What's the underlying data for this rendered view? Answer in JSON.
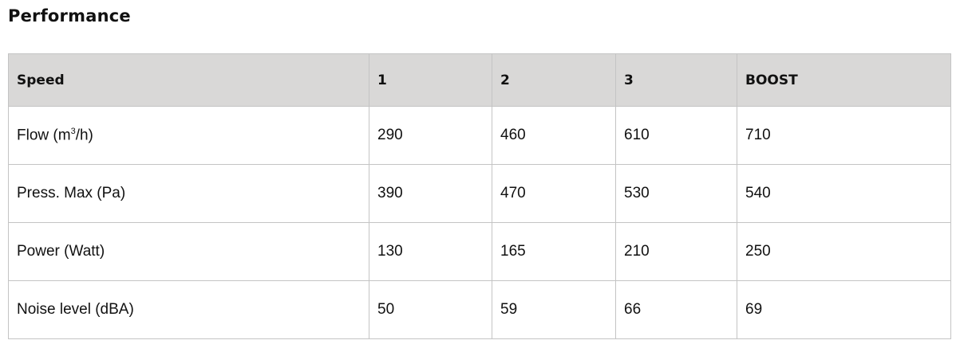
{
  "title": "Performance",
  "table": {
    "headers": [
      "Speed",
      "1",
      "2",
      "3",
      "BOOST"
    ],
    "rows": [
      {
        "label_main": "Flow (m",
        "label_sup": "3",
        "label_tail": "/h)",
        "values": [
          "290",
          "460",
          "610",
          "710"
        ]
      },
      {
        "label_main": "Press. Max (Pa)",
        "values": [
          "390",
          "470",
          "530",
          "540"
        ]
      },
      {
        "label_main": "Power (Watt)",
        "values": [
          "130",
          "165",
          "210",
          "250"
        ]
      },
      {
        "label_main": "Noise level (dBA)",
        "values": [
          "50",
          "59",
          "66",
          "69"
        ]
      }
    ]
  }
}
